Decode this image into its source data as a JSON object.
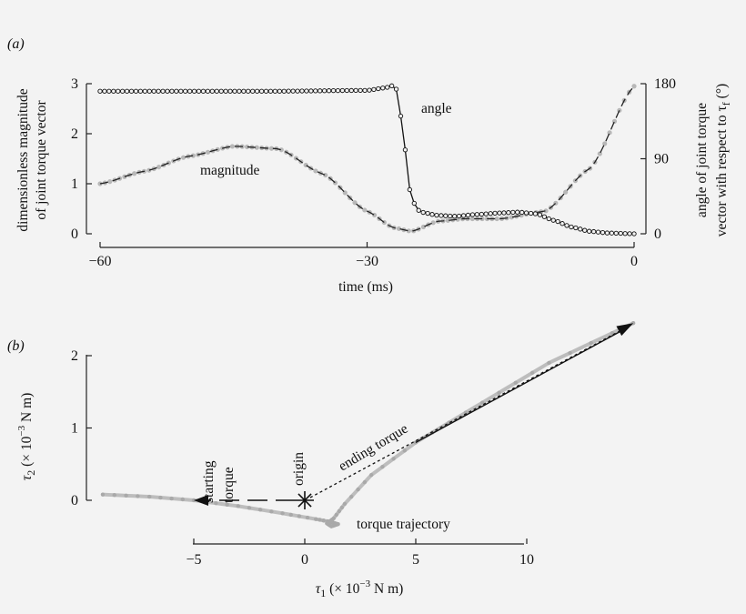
{
  "chart_data": [
    {
      "type": "line",
      "panel_label": "(a)",
      "xlabel": "time (ms)",
      "ylabel_left_line1": "dimensionless magnitude",
      "ylabel_left_line2": "of joint torque vector",
      "ylabel_right_line1": "angle of joint torque",
      "ylabel_right_line2": "vector with respect to τ",
      "ylabel_right_subscript": "f",
      "ylabel_right_unit": " (°)",
      "x_ticks": [
        "−60",
        "−30",
        "0"
      ],
      "x_tick_values": [
        -60,
        -30,
        0
      ],
      "y_left_ticks": [
        "0",
        "1",
        "2",
        "3"
      ],
      "y_left_tick_values": [
        0,
        1,
        2,
        3
      ],
      "y_right_ticks": [
        "0",
        "90",
        "180"
      ],
      "y_right_tick_values": [
        0,
        90,
        180
      ],
      "xlim": [
        -60,
        0
      ],
      "ylim_left": [
        0,
        3
      ],
      "ylim_right": [
        0,
        180
      ],
      "annotations": {
        "angle": "angle",
        "magnitude": "magnitude"
      },
      "series": [
        {
          "name": "magnitude",
          "axis": "left",
          "style": "dashed black over grey dots",
          "x": [
            -60,
            -55,
            -50,
            -45,
            -40,
            -35,
            -30,
            -27,
            -25,
            -22,
            -19,
            -15,
            -10,
            -5,
            0
          ],
          "y": [
            1.0,
            1.25,
            1.55,
            1.75,
            1.7,
            1.2,
            0.45,
            0.12,
            0.05,
            0.25,
            0.3,
            0.3,
            0.45,
            1.3,
            2.95
          ]
        },
        {
          "name": "angle",
          "axis": "right",
          "style": "black line with open circles",
          "x": [
            -60,
            -50,
            -40,
            -30,
            -28,
            -27,
            -26.5,
            -26,
            -25,
            -24,
            -22,
            -20,
            -18,
            -15,
            -13,
            -11,
            -9,
            -7,
            -5,
            -3,
            0
          ],
          "y": [
            171,
            171,
            171,
            172,
            175,
            178,
            170,
            120,
            40,
            26,
            22,
            21,
            23,
            25,
            26,
            24,
            16,
            8,
            3,
            1,
            0
          ]
        }
      ]
    },
    {
      "type": "scatter",
      "panel_label": "(b)",
      "xlabel_sym": "τ",
      "xlabel_sub": "1",
      "xlabel_pre": " (× 10",
      "xlabel_exp": "−3",
      "xlabel_post": " N m)",
      "ylabel_sym": "τ",
      "ylabel_sub": "2",
      "ylabel_pre": " (× 10",
      "ylabel_exp": "−3",
      "ylabel_post": " N m)",
      "x_ticks": [
        "−5",
        "0",
        "5",
        "10"
      ],
      "x_tick_values": [
        -5,
        0,
        5,
        10
      ],
      "y_ticks": [
        "0",
        "1",
        "2"
      ],
      "y_tick_values": [
        0,
        1,
        2
      ],
      "xlim": [
        -9.5,
        15
      ],
      "ylim": [
        -0.45,
        2.35
      ],
      "annotations": {
        "starting_line1": "starting",
        "starting_line2": "torque",
        "origin": "origin",
        "ending": "ending torque",
        "trajectory": "torque trajectory"
      },
      "origin_point": [
        0,
        0
      ],
      "starting_torque": [
        -5,
        0
      ],
      "ending_torque": [
        14.8,
        2.45
      ],
      "series": [
        {
          "name": "torque trajectory",
          "x": [
            -9.1,
            -7,
            -5,
            -3,
            -1,
            0.5,
            1.2,
            1.5,
            1.2,
            1.0,
            1.3,
            1.8,
            3,
            5,
            8,
            11,
            14.8
          ],
          "y": [
            0.08,
            0.05,
            0.0,
            -0.08,
            -0.18,
            -0.26,
            -0.3,
            -0.33,
            -0.36,
            -0.32,
            -0.25,
            -0.05,
            0.35,
            0.8,
            1.35,
            1.9,
            2.45
          ]
        }
      ]
    }
  ]
}
